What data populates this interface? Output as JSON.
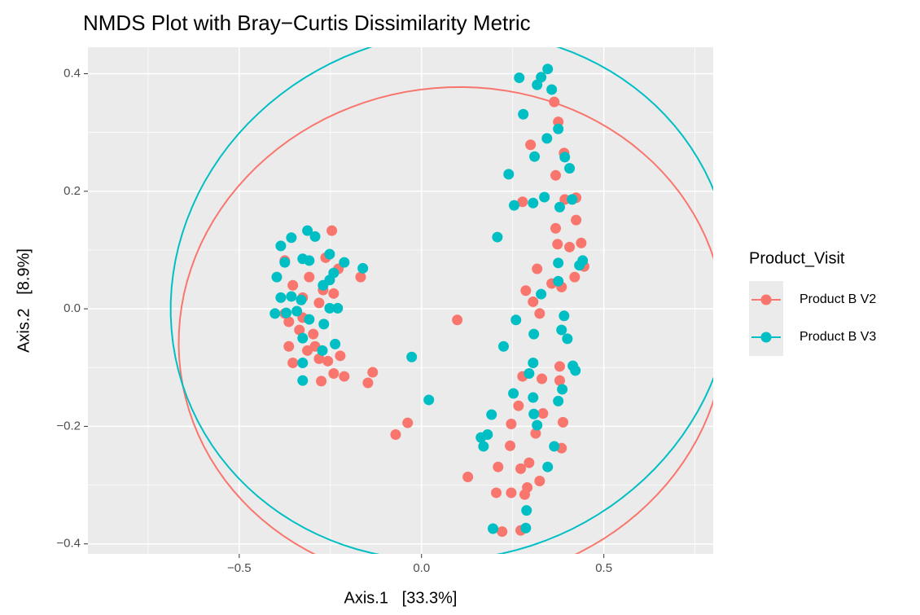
{
  "chart_data": {
    "type": "scatter",
    "title": "NMDS Plot with Bray−Curtis Dissimilarity Metric",
    "x_label": "Axis.1   [33.3%]",
    "y_label": "Axis.2   [8.9%]",
    "legend_title": "Product_Visit",
    "legend": "right",
    "grid": true,
    "xlim": [
      -0.915,
      0.8
    ],
    "ylim": [
      -0.417,
      0.445
    ],
    "xticks": [
      {
        "value": -0.5,
        "label": "−0.5"
      },
      {
        "value": 0,
        "label": "0.0"
      },
      0.5
    ],
    "yticks": [
      {
        "value": -0.4,
        "label": "−0.4"
      },
      {
        "value": -0.2,
        "label": "−0.2"
      },
      {
        "value": 0,
        "label": "0.0"
      },
      0.2,
      0.4
    ],
    "series": [
      {
        "name": "Product B V2",
        "color": "#F8766D",
        "x": [
          -0.246,
          -0.375,
          -0.263,
          -0.308,
          -0.353,
          -0.326,
          -0.281,
          -0.364,
          -0.335,
          -0.297,
          -0.364,
          -0.313,
          -0.281,
          -0.223,
          -0.353,
          -0.275,
          -0.241,
          -0.212,
          -0.147,
          -0.134,
          -0.167,
          -0.228,
          -0.27,
          -0.241,
          -0.375,
          -0.326,
          -0.292,
          -0.257,
          0.098,
          -0.038,
          -0.071,
          0.364,
          0.375,
          0.299,
          0.391,
          0.368,
          0.277,
          0.393,
          0.424,
          0.368,
          0.424,
          0.373,
          0.406,
          0.438,
          0.317,
          0.446,
          0.42,
          0.357,
          0.384,
          0.286,
          0.324,
          0.306,
          0.379,
          0.277,
          0.33,
          0.379,
          0.266,
          0.333,
          0.388,
          0.246,
          0.313,
          0.243,
          0.384,
          0.21,
          0.127,
          0.272,
          0.295,
          0.324,
          0.29,
          0.283,
          0.205,
          0.246,
          0.221,
          0.272
        ],
        "values": [
          0.133,
          0.082,
          0.087,
          0.054,
          0.04,
          0.019,
          0.01,
          -0.022,
          -0.036,
          -0.043,
          -0.064,
          -0.071,
          -0.085,
          -0.08,
          -0.092,
          -0.123,
          -0.11,
          -0.115,
          -0.126,
          -0.108,
          0.054,
          0.068,
          0.032,
          0.026,
          -0.008,
          -0.015,
          -0.064,
          -0.089,
          -0.019,
          -0.194,
          -0.214,
          0.352,
          0.318,
          0.279,
          0.265,
          0.227,
          0.182,
          0.186,
          0.189,
          0.137,
          0.151,
          0.11,
          0.105,
          0.112,
          0.068,
          0.072,
          0.054,
          0.043,
          0.037,
          0.031,
          -0.008,
          0.012,
          -0.098,
          -0.115,
          -0.119,
          -0.122,
          -0.165,
          -0.178,
          -0.193,
          -0.196,
          -0.212,
          -0.233,
          -0.237,
          -0.269,
          -0.286,
          -0.272,
          -0.262,
          -0.293,
          -0.304,
          -0.316,
          -0.313,
          -0.313,
          -0.379,
          -0.377
        ]
      },
      {
        "name": "Product B V3",
        "color": "#00BFC4",
        "x": [
          -0.313,
          -0.292,
          -0.357,
          -0.386,
          -0.252,
          -0.326,
          -0.308,
          -0.375,
          -0.212,
          -0.161,
          -0.397,
          -0.241,
          -0.252,
          -0.27,
          -0.386,
          -0.357,
          -0.33,
          -0.252,
          -0.23,
          -0.402,
          -0.371,
          -0.342,
          -0.308,
          -0.268,
          -0.326,
          -0.237,
          -0.272,
          -0.326,
          -0.326,
          -0.027,
          0.02,
          0.346,
          0.328,
          0.268,
          0.317,
          0.357,
          0.279,
          0.375,
          0.344,
          0.31,
          0.393,
          0.406,
          0.239,
          0.337,
          0.413,
          0.254,
          0.306,
          0.379,
          0.208,
          0.375,
          0.442,
          0.433,
          0.375,
          0.328,
          0.391,
          0.259,
          0.308,
          0.384,
          0.4,
          0.225,
          0.306,
          0.415,
          0.422,
          0.295,
          0.386,
          0.252,
          0.306,
          0.375,
          0.308,
          0.192,
          0.317,
          0.163,
          0.181,
          0.17,
          0.364,
          0.346,
          0.288,
          0.196,
          0.286
        ],
        "values": [
          0.133,
          0.123,
          0.121,
          0.107,
          0.093,
          0.085,
          0.082,
          0.079,
          0.079,
          0.069,
          0.054,
          0.061,
          0.049,
          0.04,
          0.019,
          0.021,
          0.015,
          0.001,
          0.001,
          -0.008,
          -0.007,
          -0.004,
          -0.018,
          -0.026,
          -0.05,
          -0.06,
          -0.071,
          -0.092,
          -0.122,
          -0.082,
          -0.155,
          0.408,
          0.394,
          0.393,
          0.381,
          0.373,
          0.331,
          0.306,
          0.29,
          0.259,
          0.258,
          0.239,
          0.229,
          0.19,
          0.186,
          0.176,
          0.18,
          0.173,
          0.122,
          0.078,
          0.082,
          0.074,
          0.047,
          0.025,
          -0.012,
          -0.019,
          -0.043,
          -0.036,
          -0.051,
          -0.064,
          -0.092,
          -0.097,
          -0.105,
          -0.11,
          -0.137,
          -0.144,
          -0.151,
          -0.157,
          -0.179,
          -0.18,
          -0.198,
          -0.219,
          -0.214,
          -0.234,
          -0.234,
          -0.269,
          -0.343,
          -0.374,
          -0.373
        ]
      }
    ]
  }
}
